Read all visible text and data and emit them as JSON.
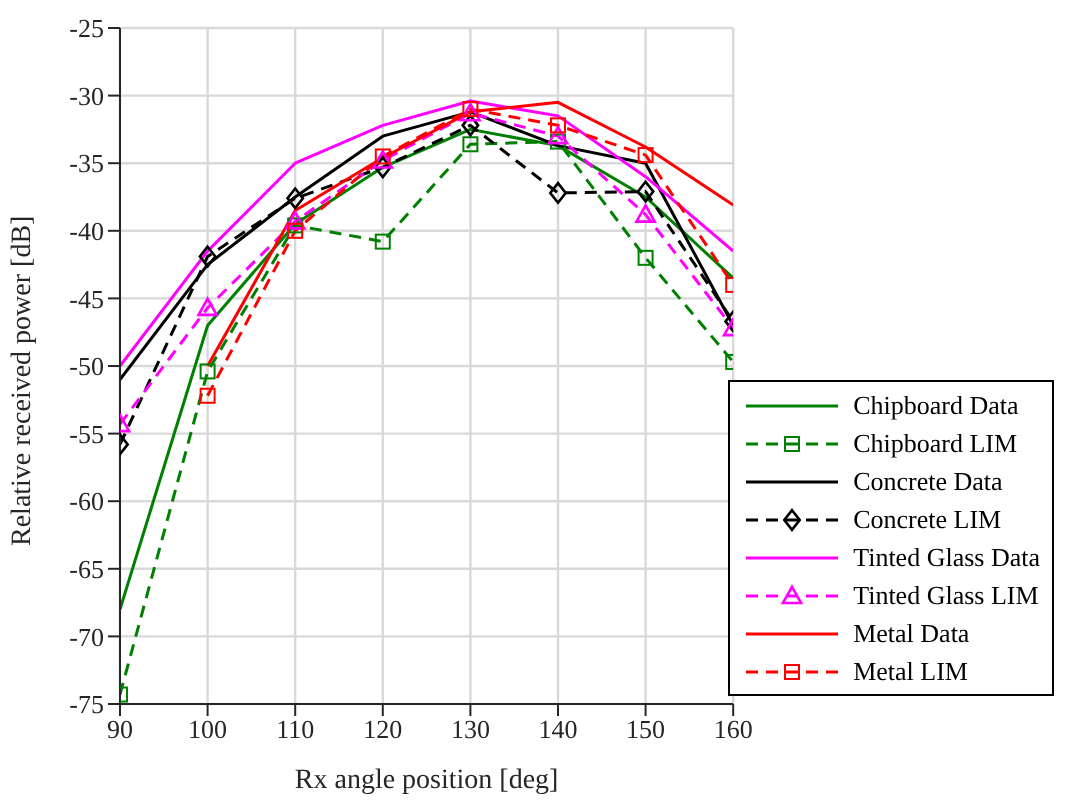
{
  "chart_data": {
    "type": "line",
    "xlabel": "Rx angle position [deg]",
    "ylabel": "Relative received power [dB]",
    "x": [
      90,
      100,
      110,
      120,
      130,
      140,
      150,
      160
    ],
    "xlim": [
      90,
      160
    ],
    "xticks": [
      90,
      100,
      110,
      120,
      130,
      140,
      150,
      160
    ],
    "ylim": [
      -75,
      -25
    ],
    "yticks": [
      -75,
      -70,
      -65,
      -60,
      -55,
      -50,
      -45,
      -40,
      -35,
      -30,
      -25
    ],
    "grid": true,
    "legend": "bottom right",
    "series": [
      {
        "name": "Chipboard Data",
        "color": "#008000",
        "line_style": "solid",
        "marker": "none",
        "values": [
          -68,
          -47,
          -39.5,
          -35.3,
          -32.5,
          -33.7,
          -37.5,
          -43.5
        ]
      },
      {
        "name": "Chipboard LIM",
        "color": "#008000",
        "line_style": "dashed",
        "marker": "square",
        "values": [
          -74.3,
          -50.4,
          -39.6,
          -40.8,
          -33.6,
          -33.4,
          -42,
          -49.7
        ]
      },
      {
        "name": "Concrete Data",
        "color": "#000000",
        "line_style": "solid",
        "marker": "none",
        "values": [
          -51,
          -42.5,
          -37.5,
          -33,
          -31.2,
          -33.7,
          -35,
          -47
        ]
      },
      {
        "name": "Concrete LIM",
        "color": "#000000",
        "line_style": "dashed",
        "marker": "diamond",
        "values": [
          -55.8,
          -41.9,
          -37.6,
          -35.3,
          -32.2,
          -37.2,
          -37.1,
          -46.7
        ]
      },
      {
        "name": "Tinted Glass Data",
        "color": "#ff00ff",
        "line_style": "solid",
        "marker": "none",
        "values": [
          -50,
          -41.5,
          -35,
          -32.2,
          -30.4,
          -31.5,
          -36,
          -41.5
        ]
      },
      {
        "name": "Tinted Glass LIM",
        "color": "#ff00ff",
        "line_style": "dashed",
        "marker": "triangle",
        "values": [
          -54.3,
          -45.7,
          -39.3,
          -34.8,
          -31.3,
          -33,
          -38.8,
          -47.2
        ]
      },
      {
        "name": "Metal Data",
        "color": "#ff0000",
        "line_style": "solid",
        "marker": "none",
        "values": [
          null,
          -50,
          -38.5,
          -34.6,
          -31.2,
          -30.5,
          -33.8,
          -38.1
        ]
      },
      {
        "name": "Metal LIM",
        "color": "#ff0000",
        "line_style": "dashed",
        "marker": "square",
        "values": [
          null,
          -52.2,
          -40,
          -34.5,
          -31,
          -32.2,
          -34.4,
          -44
        ]
      }
    ]
  }
}
